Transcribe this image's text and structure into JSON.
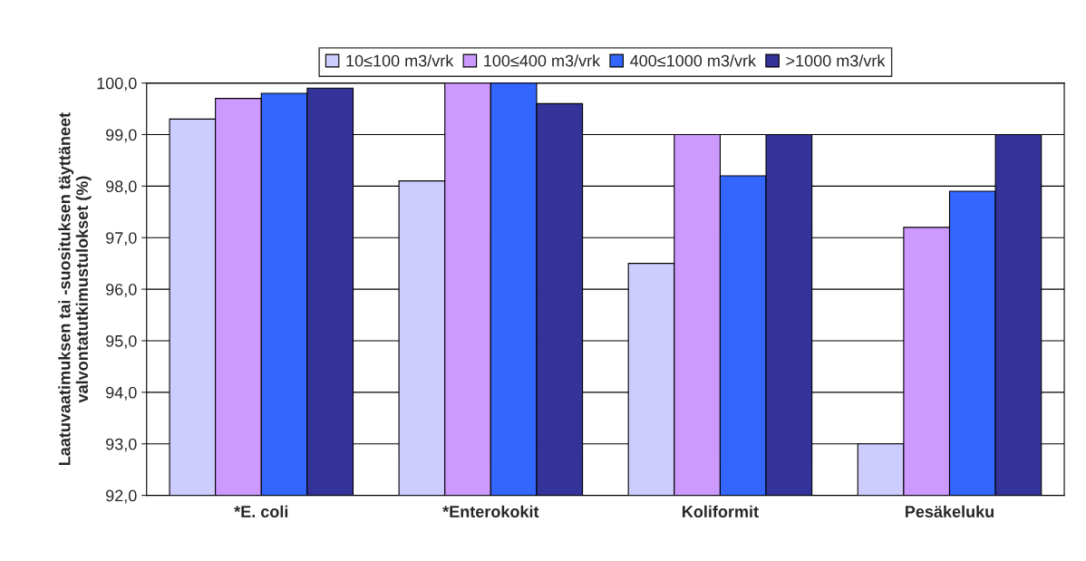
{
  "chart_data": {
    "type": "bar",
    "ylabel": "Laatuvaatimuksen tai -suosituksen täyttäneet\nvalvontatutkimustulokset (%)",
    "categories": [
      "*E. coli",
      "*Enterokokit",
      "Koliformit",
      "Pesäkeluku"
    ],
    "series": [
      {
        "name": "10≤100 m3/vrk",
        "color": "#ccccff",
        "values": [
          99.3,
          98.1,
          96.5,
          93.0
        ]
      },
      {
        "name": "100≤400 m3/vrk",
        "color": "#cc99ff",
        "values": [
          99.7,
          100.0,
          99.0,
          97.2
        ]
      },
      {
        "name": "400≤1000 m3/vrk",
        "color": "#3366ff",
        "values": [
          99.8,
          100.0,
          98.2,
          97.9
        ]
      },
      {
        "name": ">1000 m3/vrk",
        "color": "#333399",
        "values": [
          99.9,
          99.6,
          99.0,
          99.0
        ]
      }
    ],
    "ylim": [
      92,
      100
    ],
    "yticks": [
      {
        "value": 92,
        "label": "92,0"
      },
      {
        "value": 93,
        "label": "93,0"
      },
      {
        "value": 94,
        "label": "94,0"
      },
      {
        "value": 95,
        "label": "95,0"
      },
      {
        "value": 96,
        "label": "96,0"
      },
      {
        "value": 97,
        "label": "97,0"
      },
      {
        "value": 98,
        "label": "98,0"
      },
      {
        "value": 99,
        "label": "99,0"
      },
      {
        "value": 100,
        "label": "100,0"
      }
    ],
    "grid": "y",
    "legend": "top"
  }
}
